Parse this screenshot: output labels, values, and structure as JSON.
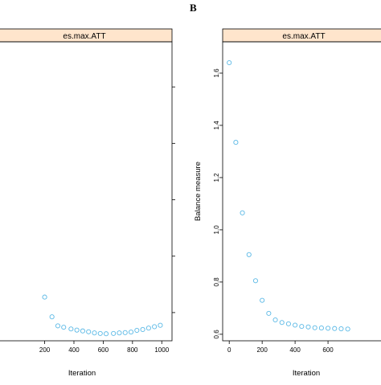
{
  "figure": {
    "background": "#ffffff",
    "strip_color": "#ffe5cc",
    "marker_color": "#5bb9e6"
  },
  "chart_data": [
    {
      "type": "scatter",
      "panel_label": "",
      "strip_title": "es.max.ATT",
      "xlabel": "Iteration",
      "ylabel": "",
      "xlim": [
        -160,
        1070
      ],
      "ylim": [
        0.6,
        1.66
      ],
      "x_ticks": [
        200,
        400,
        600,
        800,
        1000
      ],
      "x_tick_labels": [
        "200",
        "400",
        "600",
        "800",
        "1000"
      ],
      "y_ticks": [
        0.7,
        0.9,
        1.1,
        1.3,
        1.5
      ],
      "y_tick_labels": [
        "",
        "",
        "",
        "",
        ""
      ],
      "marker": "open-circle",
      "x": [
        200,
        250,
        290,
        330,
        380,
        420,
        460,
        500,
        540,
        580,
        620,
        670,
        710,
        750,
        790,
        830,
        870,
        910,
        950,
        990
      ],
      "y": [
        0.755,
        0.685,
        0.653,
        0.648,
        0.642,
        0.638,
        0.635,
        0.632,
        0.628,
        0.626,
        0.625,
        0.626,
        0.628,
        0.629,
        0.631,
        0.637,
        0.64,
        0.645,
        0.65,
        0.655
      ]
    },
    {
      "type": "scatter",
      "panel_label": "B",
      "strip_title": "es.max.ATT",
      "xlabel": "Iteration",
      "ylabel": "Balance measure",
      "xlim": [
        -40,
        1000
      ],
      "ylim": [
        0.575,
        1.72
      ],
      "x_ticks": [
        0,
        200,
        400,
        600
      ],
      "x_tick_labels": [
        "0",
        "200",
        "400",
        "600"
      ],
      "y_ticks": [
        0.6,
        0.8,
        1.0,
        1.2,
        1.4,
        1.6
      ],
      "y_tick_labels": [
        "0.6",
        "0.8",
        "1.0",
        "1.2",
        "1.4",
        "1.6"
      ],
      "marker": "open-circle",
      "x": [
        0,
        40,
        80,
        120,
        160,
        200,
        240,
        280,
        320,
        360,
        400,
        440,
        480,
        520,
        560,
        600,
        640,
        680,
        720
      ],
      "y": [
        1.64,
        1.335,
        1.065,
        0.905,
        0.805,
        0.73,
        0.68,
        0.655,
        0.645,
        0.64,
        0.635,
        0.63,
        0.628,
        0.625,
        0.624,
        0.623,
        0.622,
        0.621,
        0.62
      ]
    }
  ]
}
